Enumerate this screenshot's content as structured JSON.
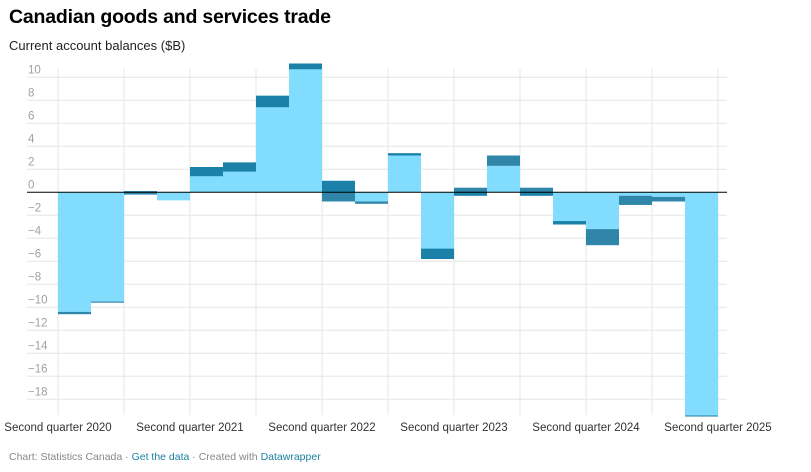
{
  "header": {
    "title": "Canadian goods and services trade",
    "subtitle": "Current account balances ($B)"
  },
  "footer": {
    "source_text": "Chart: Statistics Canada",
    "separator": " · ",
    "get_data_link": "Get the data",
    "created_with_text": "Created with ",
    "datawrapper_link": "Datawrapper"
  },
  "colors": {
    "area": "#82dcfe",
    "band": "#076f99",
    "zero_line": "#000000",
    "grid": "#e6e6e6",
    "link": "#1d81a2"
  },
  "chart_data": {
    "type": "area",
    "interpolation": "step",
    "title": "Canadian goods and services trade",
    "subtitle": "Current account balances ($B)",
    "xlabel": "",
    "ylabel": "",
    "ylim": [
      -19.5,
      11.3
    ],
    "grid": true,
    "legend": "none",
    "yticks": [
      10,
      8,
      6,
      4,
      2,
      0,
      -2,
      -4,
      -6,
      -8,
      -10,
      -12,
      -14,
      -16,
      -18
    ],
    "ytick_labels": [
      "10",
      "8",
      "6",
      "4",
      "2",
      "0",
      "−2",
      "−4",
      "−6",
      "−8",
      "−10",
      "−12",
      "−14",
      "−16",
      "−18"
    ],
    "xtick_labels": [
      "Second quarter 2020",
      "Second quarter 2021",
      "Second quarter 2022",
      "Second quarter 2023",
      "Second quarter 2024",
      "Second quarter 2025"
    ],
    "xtick_quarter_index": [
      0,
      4,
      8,
      12,
      16,
      20
    ],
    "quarter_count": 21,
    "series": [
      {
        "id": "area",
        "description": "light blue step area from zero",
        "values": [
          -10.4,
          -9.5,
          0.1,
          -0.7,
          2.2,
          2.6,
          8.4,
          11.2,
          1.0,
          -0.8,
          3.4,
          -5.8,
          -0.3,
          2.3,
          -0.3,
          -2.8,
          -3.2,
          -0.3,
          -0.4,
          -19.4
        ]
      },
      {
        "id": "band",
        "description": "dark blue band drawn between this series and the area series",
        "values": [
          -10.6,
          -9.6,
          -0.2,
          -0.7,
          1.4,
          1.8,
          7.4,
          10.7,
          -0.8,
          -1.0,
          3.2,
          -4.9,
          0.4,
          3.2,
          0.4,
          -2.5,
          -4.6,
          -1.1,
          -0.8,
          -19.5
        ]
      }
    ]
  }
}
